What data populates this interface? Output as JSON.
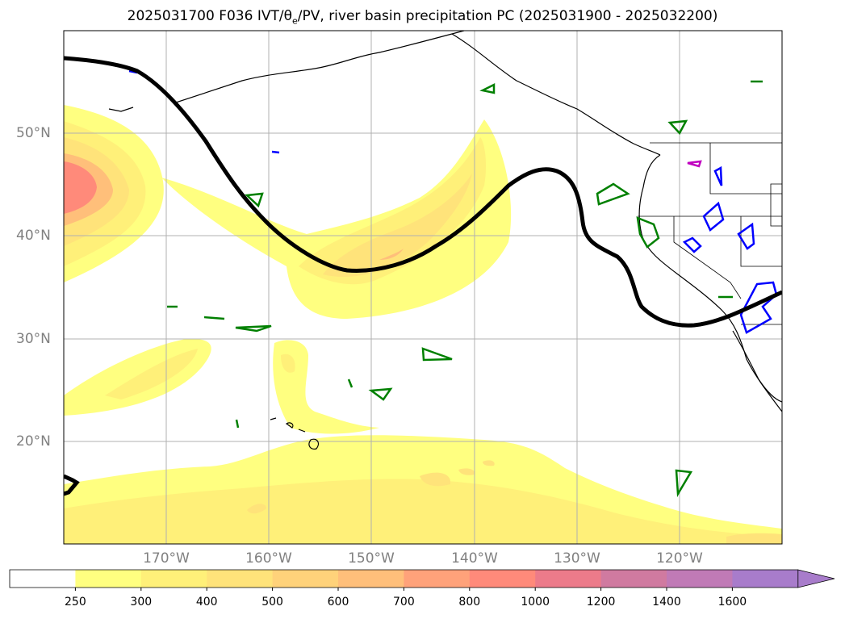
{
  "title": {
    "prefix": "2025031700 F036 IVT/",
    "theta": "θ",
    "theta_sub": "e",
    "suffix": "/PV, river basin precipitation PC (2025031900 - 2025032200)"
  },
  "axes": {
    "lat_labels": [
      "50°N",
      "40°N",
      "30°N",
      "20°N"
    ],
    "lon_labels": [
      "170°W",
      "160°W",
      "150°W",
      "140°W",
      "130°W",
      "120°W"
    ]
  },
  "colorbar": {
    "labels": [
      "250",
      "300",
      "400",
      "500",
      "600",
      "700",
      "800",
      "1000",
      "1200",
      "1400",
      "1600"
    ],
    "colors": [
      "#ffffff",
      "#ffff80",
      "#fff079",
      "#ffe37a",
      "#ffd27a",
      "#ffbf7a",
      "#ffa27a",
      "#ff8a7a",
      "#ec7b8a",
      "#d07aa0",
      "#c07ab6",
      "#a87ccb"
    ]
  },
  "colors": {
    "trough_line": "#000000",
    "basin_green": "#008000",
    "basin_blue": "#0000ff",
    "basin_magenta": "#c000c0"
  }
}
